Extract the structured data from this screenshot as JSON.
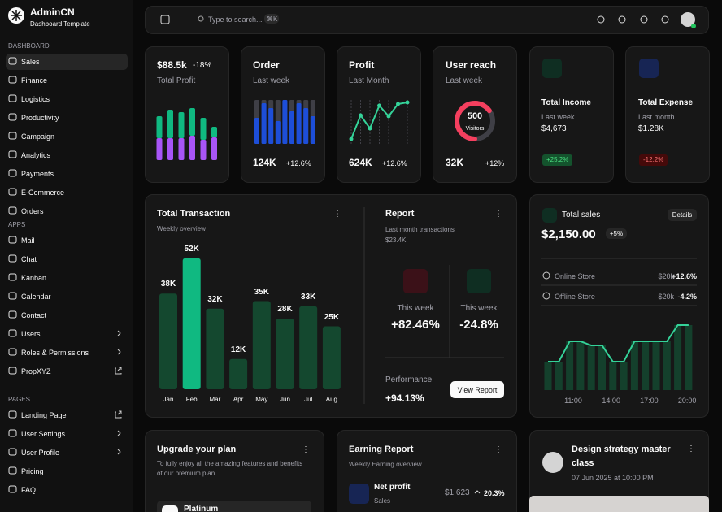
{
  "sidebar": {
    "brand": "AdminCN",
    "tagline": "Dashboard Template",
    "sections": [
      {
        "title": "DASHBOARD",
        "items": [
          {
            "label": "Sales",
            "active": true
          },
          {
            "label": "Finance"
          },
          {
            "label": "Logistics"
          },
          {
            "label": "Productivity"
          },
          {
            "label": "Campaign"
          },
          {
            "label": "Analytics"
          },
          {
            "label": "Payments"
          },
          {
            "label": "E-Commerce"
          },
          {
            "label": "Orders"
          }
        ]
      },
      {
        "title": "APPS",
        "items": [
          {
            "label": "Mail"
          },
          {
            "label": "Chat"
          },
          {
            "label": "Kanban"
          },
          {
            "label": "Calendar"
          },
          {
            "label": "Contact"
          },
          {
            "label": "Users",
            "trailing": "chevron"
          },
          {
            "label": "Roles & Permissions",
            "trailing": "chevron"
          },
          {
            "label": "PropXYZ",
            "trailing": "external"
          }
        ]
      },
      {
        "title": "PAGES",
        "items": [
          {
            "label": "Landing Page",
            "trailing": "external"
          },
          {
            "label": "User Settings",
            "trailing": "chevron"
          },
          {
            "label": "User Profile",
            "trailing": "chevron"
          },
          {
            "label": "Pricing"
          },
          {
            "label": "FAQ"
          }
        ]
      }
    ]
  },
  "topbar": {
    "search": "Type to search...",
    "shortcut": "⌘K"
  },
  "profit": {
    "value": "$88.5k",
    "change": "-18%",
    "label": "Total Profit",
    "series": [
      {
        "color": "#a855f7",
        "values": [
          27,
          27,
          27,
          30,
          25,
          28
        ]
      },
      {
        "color": "#10b981",
        "values": [
          27,
          35,
          32,
          34,
          27,
          13
        ]
      }
    ]
  },
  "order": {
    "title": "Order",
    "subtitle": "Last week",
    "value": "124K",
    "change": "+12.6%",
    "color": "#1d4ed8",
    "values": [
      32,
      50,
      44,
      28,
      54,
      40,
      50,
      44,
      34
    ]
  },
  "profit_line": {
    "title": "Profit",
    "subtitle": "Last Month",
    "value": "624K",
    "change": "+12.6%",
    "color": "#34d399",
    "values": [
      0,
      29,
      13,
      41,
      28,
      43,
      45
    ]
  },
  "reach": {
    "title": "User reach",
    "subtitle": "Last week",
    "center": "500",
    "center_label": "Visitors",
    "value": "32K",
    "change": "+12%",
    "percent": 65,
    "color": "#f43f5e"
  },
  "income": {
    "title": "Total Income",
    "subtitle": "Last week",
    "value": "$4,673",
    "badge": "+25.2%"
  },
  "expense": {
    "title": "Total Expense",
    "subtitle": "Last month",
    "value": "$1.28K",
    "badge": "-12.2%"
  },
  "transaction": {
    "title": "Total Transaction",
    "subtitle": "Weekly overview",
    "chart_data": {
      "type": "bar",
      "categories": [
        "Jan",
        "Feb",
        "Mar",
        "Apr",
        "May",
        "Jun",
        "Jul",
        "Aug"
      ],
      "values": [
        38,
        52,
        32,
        12,
        35,
        28,
        33,
        25
      ],
      "value_labels": [
        "38K",
        "52K",
        "32K",
        "12K",
        "35K",
        "28K",
        "33K",
        "25K"
      ],
      "color": "#14482f",
      "highlight": "#10b981",
      "highlight_index": 1
    }
  },
  "report": {
    "title": "Report",
    "subtitle": "Last month transactions",
    "amount": "$23.4K",
    "left": {
      "label": "This week",
      "value": "+82.46%"
    },
    "right": {
      "label": "This week",
      "value": "-24.8%"
    },
    "performance_label": "Performance",
    "performance": "+94.13%",
    "button": "View Report"
  },
  "sales": {
    "title": "Total sales",
    "button": "Details",
    "value": "$2,150.00",
    "badge": "+5%",
    "rows": [
      {
        "name": "Online Store",
        "amount": "$20k",
        "change": "+12.6%"
      },
      {
        "name": "Offline Store",
        "amount": "$20k",
        "change": "-4.2%"
      }
    ],
    "chart_data": {
      "type": "bar-line",
      "x_labels": [
        "11:00",
        "14:00",
        "17:00",
        "20:00"
      ],
      "values": [
        35,
        35,
        60,
        60,
        55,
        55,
        35,
        35,
        60,
        60,
        60,
        60,
        80,
        80
      ],
      "bar_color": "#14402c",
      "line_color": "#34d399"
    }
  },
  "upgrade": {
    "title": "Upgrade your plan",
    "text": "To fully enjoy all the amazing features and benefits of our premium plan.",
    "plan": "Platinum"
  },
  "earning": {
    "title": "Earning Report",
    "subtitle": "Weekly Earning overview",
    "item": "Net profit",
    "item_sub": "Sales",
    "amount": "$1,623",
    "change": "20.3%"
  },
  "event": {
    "title": "Design strategy master class",
    "date": "07 Jun 2025 at 10:00 PM"
  }
}
